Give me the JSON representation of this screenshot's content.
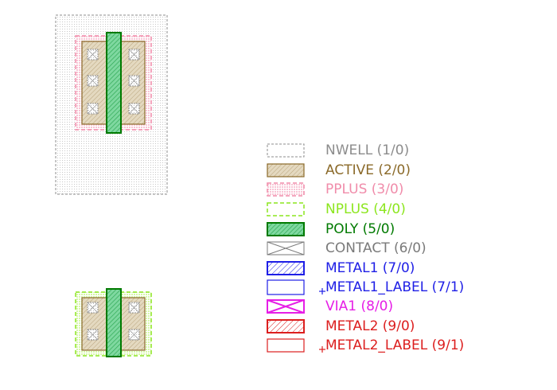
{
  "layers": [
    {
      "key": "nwell",
      "label": "NWELL (1/0)",
      "color": "#8c8c8c"
    },
    {
      "key": "active",
      "label": "ACTIVE (2/0)",
      "color": "#8b6a2a"
    },
    {
      "key": "pplus",
      "label": "PPLUS (3/0)",
      "color": "#f08caa"
    },
    {
      "key": "nplus",
      "label": "NPLUS (4/0)",
      "color": "#8ce61e"
    },
    {
      "key": "poly",
      "label": "POLY (5/0)",
      "color": "#007a00"
    },
    {
      "key": "contact",
      "label": "CONTACT (6/0)",
      "color": "#7a7a7a"
    },
    {
      "key": "metal1",
      "label": "METAL1 (7/0)",
      "color": "#1e1ee6"
    },
    {
      "key": "metal1_label",
      "label": "METAL1_LABEL (7/1)",
      "color": "#1e1ee6"
    },
    {
      "key": "via1",
      "label": "VIA1 (8/0)",
      "color": "#e61ee6"
    },
    {
      "key": "metal2",
      "label": "METAL2 (9/0)",
      "color": "#dc1e1e"
    },
    {
      "key": "metal2_label",
      "label": "METAL2_LABEL (9/1)",
      "color": "#dc1e1e"
    }
  ]
}
